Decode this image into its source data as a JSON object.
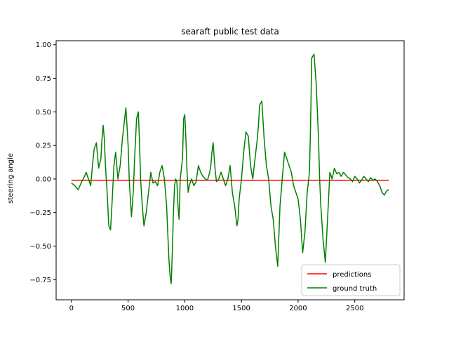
{
  "chart_data": {
    "type": "line",
    "title": "searaft public test data",
    "xlabel": "",
    "ylabel": "steering angle",
    "xlim": [
      -135,
      2935
    ],
    "ylim": [
      -0.9,
      1.03
    ],
    "xticks": [
      0,
      500,
      1000,
      1500,
      2000,
      2500
    ],
    "yticks": [
      -0.75,
      -0.5,
      -0.25,
      0.0,
      0.25,
      0.5,
      0.75,
      1.0
    ],
    "xtick_labels": [
      "0",
      "500",
      "1000",
      "1500",
      "2000",
      "2500"
    ],
    "ytick_labels": [
      "−0.75",
      "−0.50",
      "−0.25",
      "0.00",
      "0.25",
      "0.50",
      "0.75",
      "1.00"
    ],
    "grid": false,
    "legend": "lower-right",
    "series": [
      {
        "name": "predictions",
        "color": "#ff0000",
        "x": [
          0,
          2800
        ],
        "y": [
          -0.01,
          -0.01
        ]
      },
      {
        "name": "ground truth",
        "color": "#008000",
        "x": [
          0,
          30,
          60,
          90,
          110,
          130,
          150,
          170,
          180,
          200,
          220,
          240,
          260,
          270,
          280,
          290,
          300,
          315,
          330,
          345,
          360,
          375,
          390,
          410,
          430,
          450,
          470,
          480,
          490,
          500,
          510,
          520,
          530,
          545,
          560,
          575,
          590,
          600,
          610,
          625,
          640,
          660,
          680,
          700,
          720,
          740,
          760,
          780,
          800,
          820,
          840,
          850,
          860,
          870,
          880,
          890,
          900,
          910,
          920,
          930,
          940,
          950,
          960,
          980,
          990,
          1000,
          1010,
          1020,
          1030,
          1040,
          1060,
          1080,
          1100,
          1120,
          1140,
          1160,
          1180,
          1200,
          1220,
          1230,
          1240,
          1250,
          1260,
          1270,
          1280,
          1300,
          1320,
          1340,
          1360,
          1380,
          1400,
          1420,
          1430,
          1440,
          1460,
          1470,
          1480,
          1500,
          1520,
          1540,
          1560,
          1580,
          1600,
          1620,
          1640,
          1650,
          1660,
          1680,
          1700,
          1720,
          1740,
          1760,
          1780,
          1800,
          1820,
          1840,
          1860,
          1880,
          1900,
          1920,
          1940,
          1960,
          1980,
          2000,
          2020,
          2040,
          2060,
          2080,
          2100,
          2110,
          2120,
          2140,
          2160,
          2180,
          2190,
          2200,
          2220,
          2240,
          2260,
          2280,
          2300,
          2320,
          2340,
          2360,
          2380,
          2400,
          2420,
          2440,
          2460,
          2480,
          2500,
          2520,
          2540,
          2560,
          2580,
          2600,
          2620,
          2640,
          2660,
          2680,
          2700,
          2720,
          2740,
          2760,
          2780,
          2800
        ],
        "y": [
          -0.03,
          -0.05,
          -0.08,
          -0.02,
          0.01,
          0.05,
          0.0,
          -0.05,
          0.05,
          0.22,
          0.27,
          0.08,
          0.15,
          0.3,
          0.4,
          0.3,
          0.1,
          -0.1,
          -0.35,
          -0.38,
          -0.15,
          0.1,
          0.2,
          0.0,
          0.1,
          0.3,
          0.45,
          0.53,
          0.4,
          0.25,
          0.0,
          -0.15,
          -0.28,
          -0.1,
          0.2,
          0.45,
          0.5,
          0.3,
          0.0,
          -0.2,
          -0.35,
          -0.25,
          -0.1,
          0.05,
          -0.03,
          -0.02,
          -0.05,
          0.05,
          0.1,
          0.0,
          -0.2,
          -0.4,
          -0.6,
          -0.72,
          -0.78,
          -0.55,
          -0.25,
          -0.05,
          0.0,
          -0.02,
          -0.2,
          -0.3,
          0.0,
          0.15,
          0.45,
          0.48,
          0.3,
          0.05,
          -0.1,
          -0.05,
          0.0,
          -0.05,
          -0.02,
          0.1,
          0.05,
          0.02,
          0.0,
          -0.01,
          0.05,
          0.1,
          0.2,
          0.27,
          0.15,
          0.05,
          -0.02,
          0.0,
          0.05,
          0.0,
          -0.05,
          0.0,
          0.1,
          -0.1,
          -0.15,
          -0.2,
          -0.35,
          -0.3,
          -0.15,
          0.0,
          0.2,
          0.35,
          0.32,
          0.1,
          0.0,
          0.15,
          0.3,
          0.4,
          0.55,
          0.58,
          0.3,
          0.1,
          0.0,
          -0.2,
          -0.3,
          -0.5,
          -0.65,
          -0.2,
          0.0,
          0.2,
          0.15,
          0.1,
          0.05,
          -0.05,
          -0.1,
          -0.15,
          -0.3,
          -0.55,
          -0.4,
          -0.1,
          0.05,
          0.4,
          0.9,
          0.93,
          0.7,
          0.3,
          0.0,
          -0.2,
          -0.45,
          -0.62,
          -0.3,
          0.05,
          0.0,
          0.08,
          0.04,
          0.05,
          0.02,
          0.05,
          0.03,
          0.01,
          0.0,
          -0.02,
          0.02,
          0.0,
          -0.03,
          -0.01,
          0.02,
          0.0,
          -0.02,
          0.01,
          -0.01,
          0.0,
          -0.02,
          -0.05,
          -0.1,
          -0.12,
          -0.09,
          -0.08
        ]
      }
    ]
  }
}
